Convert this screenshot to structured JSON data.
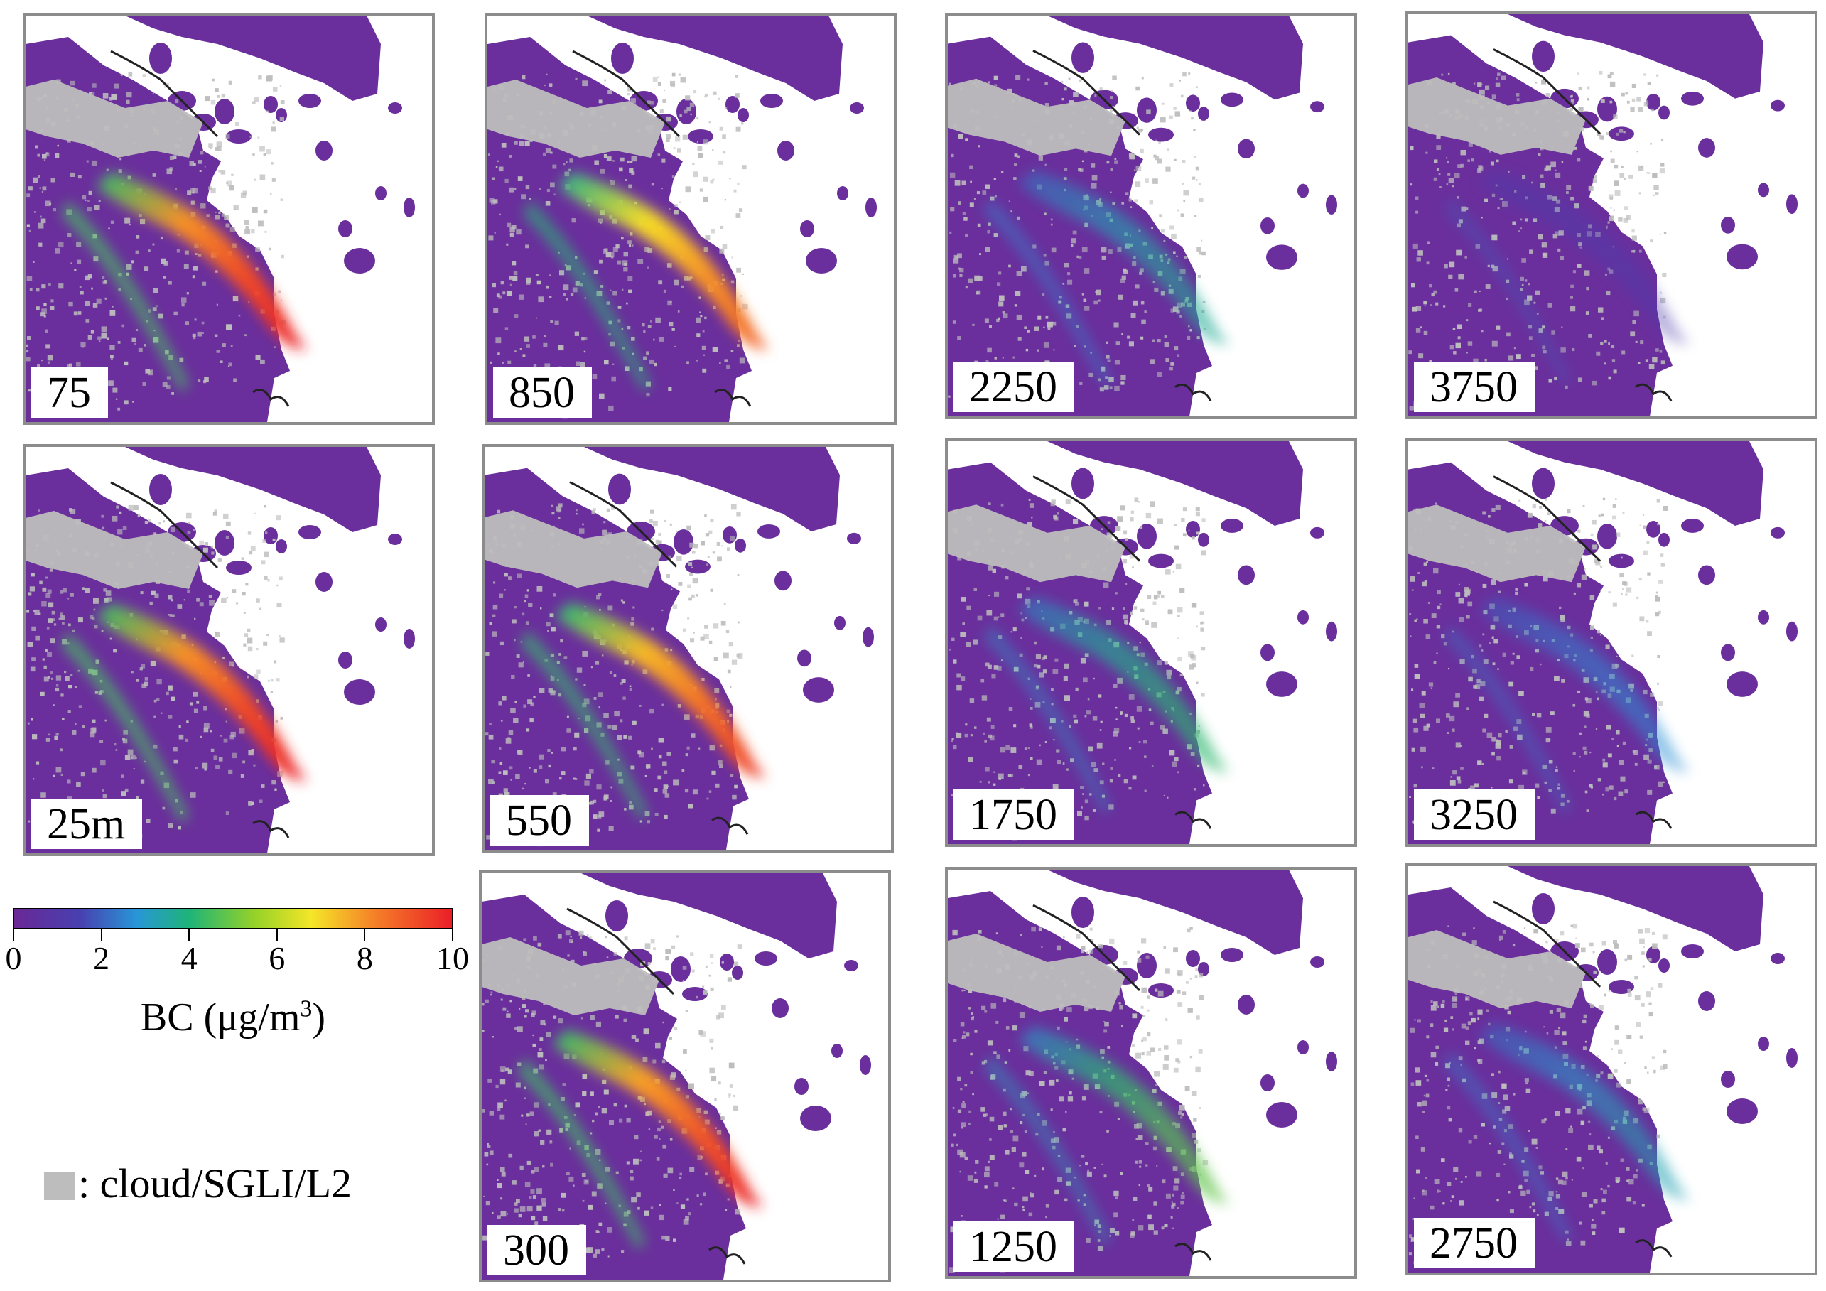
{
  "panels": [
    {
      "label": "75",
      "plume_level": 1.0
    },
    {
      "label": "850",
      "plume_level": 0.85
    },
    {
      "label": "2250",
      "plume_level": 0.32
    },
    {
      "label": "3750",
      "plume_level": 0.06
    },
    {
      "label": "25m",
      "plume_level": 1.0
    },
    {
      "label": "550",
      "plume_level": 0.92
    },
    {
      "label": "1750",
      "plume_level": 0.38
    },
    {
      "label": "3250",
      "plume_level": 0.22
    },
    {
      "label": "300",
      "plume_level": 0.97
    },
    {
      "label": "1250",
      "plume_level": 0.45
    },
    {
      "label": "2750",
      "plume_level": 0.28
    }
  ],
  "colorbar": {
    "ticks": [
      "0",
      "2",
      "4",
      "6",
      "8",
      "10"
    ],
    "min": 0,
    "max": 10,
    "title_prefix": "BC (μg/m",
    "title_sup": "3",
    "title_suffix": ")"
  },
  "cloud_legend": {
    "text": ": cloud/SGLI/L2",
    "color": "#bdbdbd"
  },
  "colors": {
    "background_land": "#6a2f9c",
    "cloud": "#bdbdbd",
    "sea": "#ffffff",
    "border": "#8c8c8c"
  }
}
